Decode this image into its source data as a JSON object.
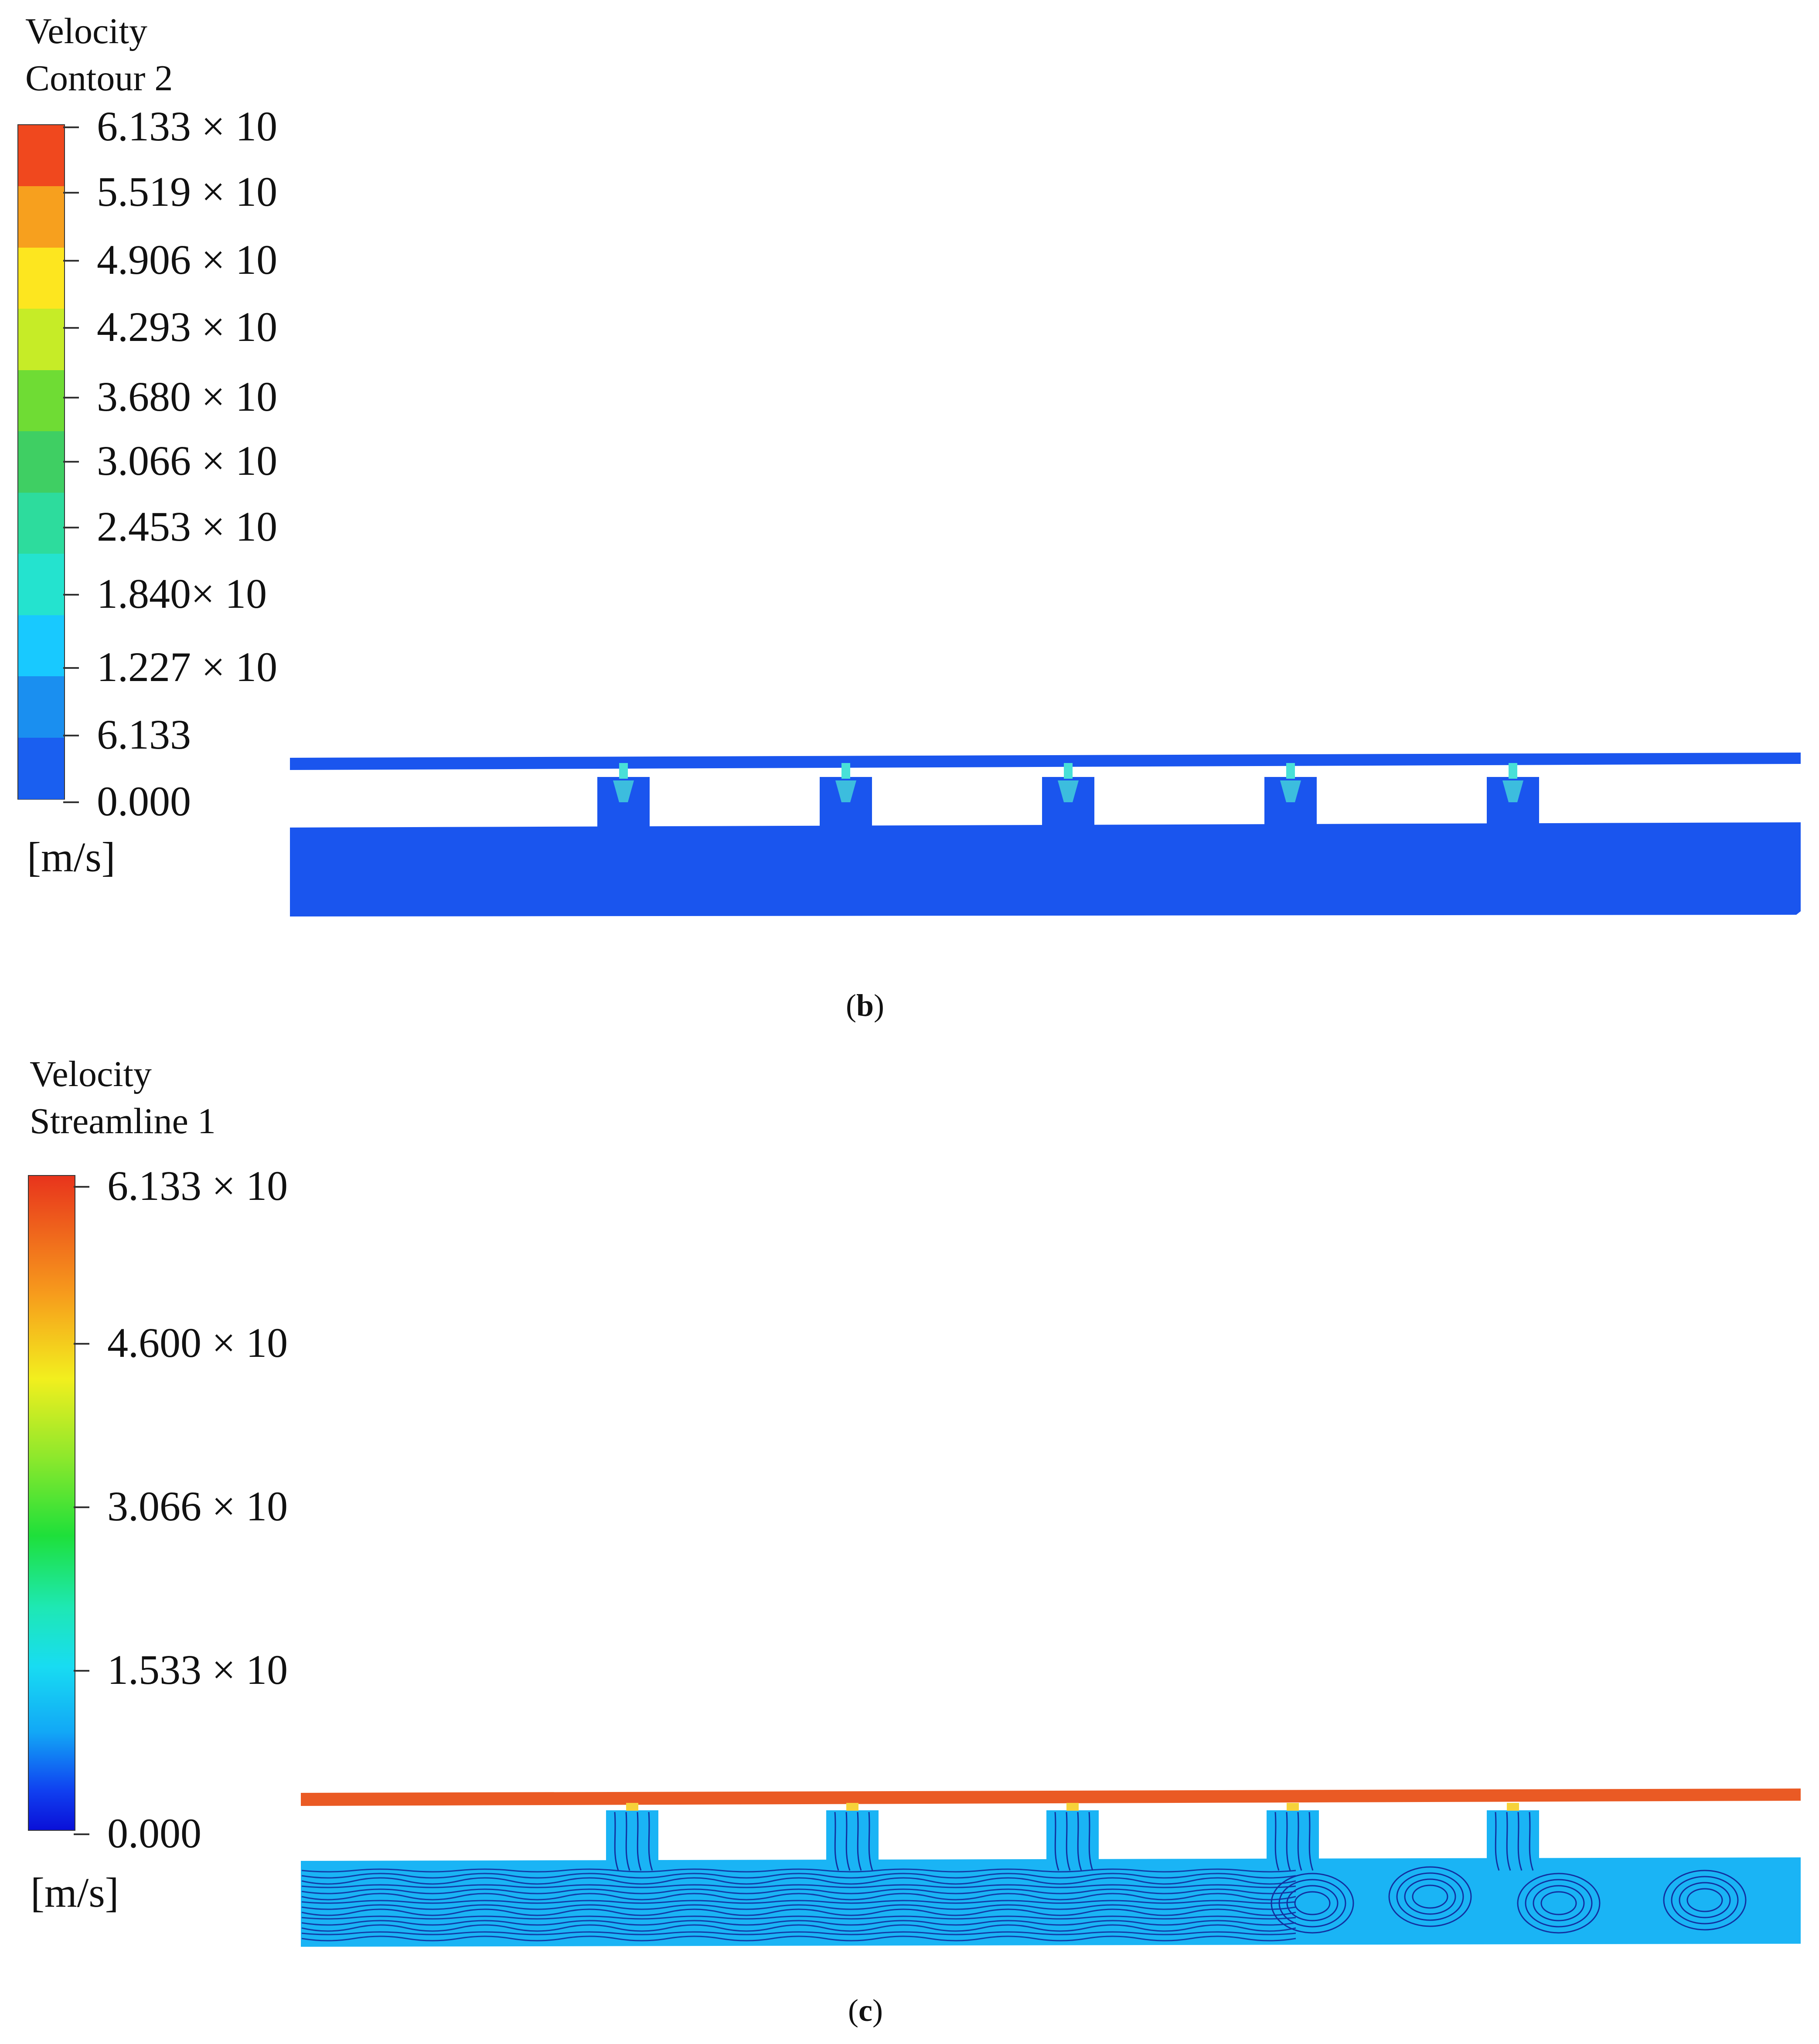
{
  "panel_b": {
    "title_line1": "Velocity",
    "title_line2": "Contour 2",
    "unit": "[m/s]",
    "caption_letter": "b",
    "legend_labels": [
      "6.133 × 10",
      "5.519 × 10",
      "4.906 × 10",
      "4.293 × 10",
      "3.680 × 10",
      "3.066 × 10",
      "2.453 × 10",
      "1.840× 10",
      "1.227 × 10",
      "6.133",
      "0.000"
    ],
    "bands": [
      "#f0481e",
      "#f7a01e",
      "#fde61f",
      "#c6ec27",
      "#6fdc34",
      "#3fcf63",
      "#2ddc9d",
      "#24e3cf",
      "#18c9ff",
      "#1a8ff0",
      "#1a5ff0"
    ]
  },
  "panel_c": {
    "title_line1": "Velocity",
    "title_line2": "Streamline 1",
    "unit": "[m/s]",
    "caption_letter": "c",
    "legend_labels": [
      "6.133 × 10",
      "4.600 × 10",
      "3.066 × 10",
      "1.533 × 10",
      "0.000"
    ]
  },
  "colors": {
    "domain_blue": "#1a55ee",
    "channel_cyan": "#1ab4f5",
    "streamline": "#1230a0",
    "pipe_orange": "#ea5a24",
    "jet_cyan": "#48e0d8",
    "jet_yellow": "#f6d23a"
  }
}
